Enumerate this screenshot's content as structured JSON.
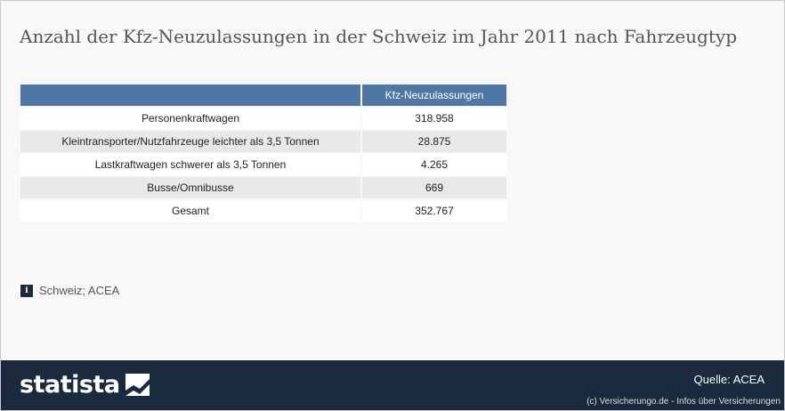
{
  "title": "Anzahl der Kfz-Neuzulassungen in der Schweiz im Jahr 2011 nach Fahrzeugtyp",
  "chart_data": {
    "type": "table",
    "columns": [
      "",
      "Kfz-Neuzulassungen"
    ],
    "rows": [
      {
        "label": "Personenkraftwagen",
        "value": "318.958"
      },
      {
        "label": "Kleintransporter/Nutzfahrzeuge leichter als 3,5 Tonnen",
        "value": "28.875"
      },
      {
        "label": "Lastkraftwagen schwerer als 3,5 Tonnen",
        "value": "4.265"
      },
      {
        "label": "Busse/Omnibusse",
        "value": "669"
      },
      {
        "label": "Gesamt",
        "value": "352.767"
      }
    ]
  },
  "note": {
    "icon": "info-icon",
    "icon_glyph": "i",
    "text": "Schweiz; ACEA"
  },
  "footer": {
    "logo_text": "statista",
    "source": "Quelle: ACEA",
    "credit": "(c) Versicherungo.de - Infos über Versicherungen"
  },
  "colors": {
    "header": "#4f77a3",
    "footer": "#1b2a3d",
    "row_alt": "#e8e8e8"
  }
}
